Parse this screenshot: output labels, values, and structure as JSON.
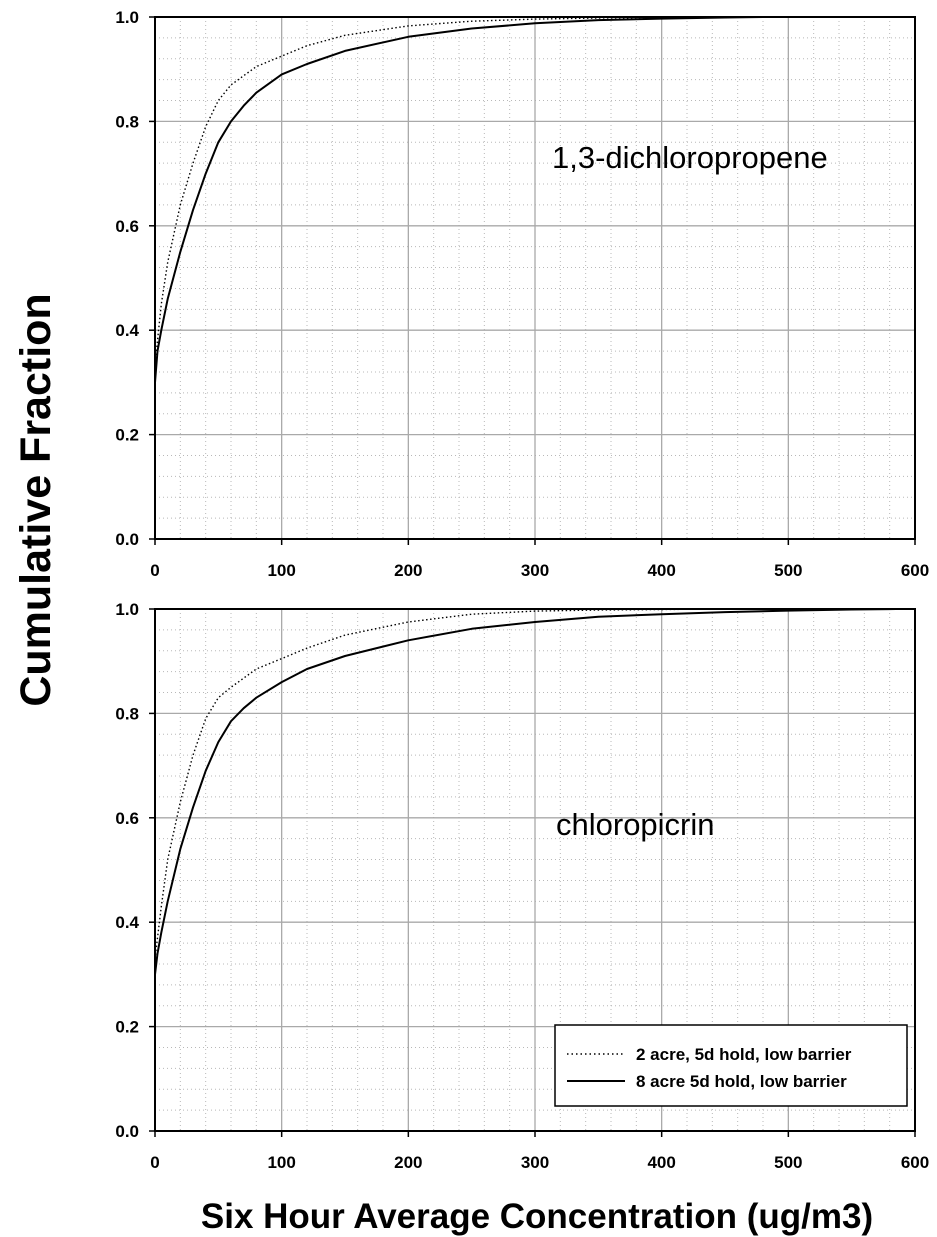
{
  "figure": {
    "ylabel": "Cumulative Fraction",
    "xlabel": "Six Hour Average Concentration (ug/m3)"
  },
  "legend": {
    "placement": "bottom-right of lower panel",
    "entries": [
      {
        "label": "2 acre, 5d hold, low barrier",
        "style": "dotted"
      },
      {
        "label": "8 acre 5d hold, low barrier",
        "style": "solid"
      }
    ]
  },
  "chart_data": [
    {
      "type": "line",
      "annotation": "1,3-dichloropropene",
      "xlim": [
        0,
        600
      ],
      "ylim": [
        0,
        1.0
      ],
      "x_ticks": [
        "0",
        "100",
        "200",
        "300",
        "400",
        "500",
        "600"
      ],
      "y_ticks": [
        "0.0",
        "0.2",
        "0.4",
        "0.6",
        "0.8",
        "1.0"
      ],
      "grid": true,
      "series": [
        {
          "name": "2 acre, 5d hold, low barrier",
          "style": "dotted",
          "x": [
            0,
            0,
            2,
            5,
            10,
            20,
            30,
            40,
            50,
            60,
            80,
            100,
            120,
            150,
            200,
            250,
            300,
            350,
            400,
            450
          ],
          "y": [
            0,
            0.33,
            0.38,
            0.45,
            0.53,
            0.64,
            0.72,
            0.79,
            0.84,
            0.87,
            0.905,
            0.925,
            0.945,
            0.965,
            0.983,
            0.992,
            0.996,
            0.998,
            0.999,
            1.0
          ]
        },
        {
          "name": "8 acre 5d hold, low barrier",
          "style": "solid",
          "x": [
            0,
            0,
            2,
            5,
            10,
            20,
            30,
            40,
            50,
            60,
            70,
            80,
            100,
            120,
            150,
            200,
            250,
            300,
            350,
            400,
            450,
            480
          ],
          "y": [
            0,
            0.3,
            0.36,
            0.4,
            0.46,
            0.55,
            0.63,
            0.7,
            0.76,
            0.8,
            0.83,
            0.855,
            0.89,
            0.91,
            0.935,
            0.962,
            0.978,
            0.988,
            0.994,
            0.997,
            0.999,
            1.0
          ]
        }
      ]
    },
    {
      "type": "line",
      "annotation": "chloropicrin",
      "xlim": [
        0,
        600
      ],
      "ylim": [
        0,
        1.0
      ],
      "x_ticks": [
        "0",
        "100",
        "200",
        "300",
        "400",
        "500",
        "600"
      ],
      "y_ticks": [
        "0.0",
        "0.2",
        "0.4",
        "0.6",
        "0.8",
        "1.0"
      ],
      "grid": true,
      "series": [
        {
          "name": "2 acre, 5d hold, low barrier",
          "style": "dotted",
          "x": [
            0,
            0,
            2,
            5,
            10,
            20,
            30,
            40,
            50,
            60,
            80,
            100,
            120,
            150,
            200,
            250,
            300,
            350,
            400,
            450,
            500
          ],
          "y": [
            0,
            0.33,
            0.37,
            0.43,
            0.52,
            0.63,
            0.72,
            0.79,
            0.83,
            0.85,
            0.885,
            0.905,
            0.925,
            0.95,
            0.975,
            0.99,
            0.996,
            0.998,
            0.999,
            1.0,
            1.0
          ]
        },
        {
          "name": "8 acre 5d hold, low barrier",
          "style": "solid",
          "x": [
            0,
            0,
            2,
            5,
            10,
            20,
            30,
            40,
            50,
            60,
            70,
            80,
            100,
            120,
            150,
            200,
            250,
            300,
            350,
            400,
            450,
            500,
            550,
            585
          ],
          "y": [
            0,
            0.3,
            0.34,
            0.38,
            0.44,
            0.54,
            0.62,
            0.69,
            0.745,
            0.785,
            0.81,
            0.83,
            0.86,
            0.885,
            0.91,
            0.94,
            0.962,
            0.975,
            0.985,
            0.99,
            0.994,
            0.997,
            0.999,
            1.0
          ]
        }
      ]
    }
  ]
}
